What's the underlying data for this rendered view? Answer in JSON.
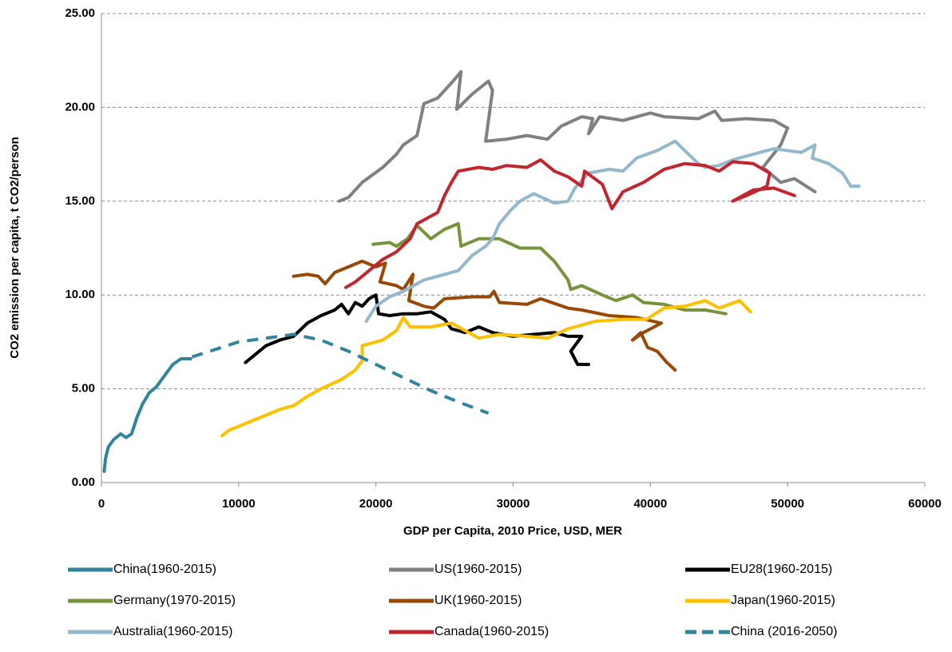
{
  "chart_data": {
    "type": "line",
    "x_label": "GDP per Capita, 2010 Price, USD, MER",
    "y_label": "CO2 emission per capita, t CO2/person",
    "xlim": [
      0,
      60000
    ],
    "xticks": [
      0,
      10000,
      20000,
      30000,
      40000,
      50000,
      60000
    ],
    "ylim": [
      0,
      25
    ],
    "yticks": [
      {
        "value": 0,
        "label": "0.00"
      },
      {
        "value": 5,
        "label": "5.00"
      },
      {
        "value": 10,
        "label": "10.00"
      },
      {
        "value": 15,
        "label": "15.00"
      },
      {
        "value": 20,
        "label": "20.00"
      },
      {
        "value": 25,
        "label": "25.00"
      }
    ],
    "grid": true,
    "legend": "bottom",
    "series": [
      {
        "name": "China(1960-2015)",
        "color": "#31849b",
        "line_style": "solid",
        "x": [
          200,
          300,
          500,
          900,
          1400,
          1800,
          2200,
          2600,
          3000,
          3500,
          4000,
          4600,
          5200,
          5800,
          6500
        ],
        "values": [
          0.6,
          1.3,
          1.9,
          2.3,
          2.6,
          2.4,
          2.6,
          3.5,
          4.2,
          4.8,
          5.1,
          5.7,
          6.3,
          6.6,
          6.6
        ]
      },
      {
        "name": "US(1960-2015)",
        "color": "#808080",
        "line_style": "solid",
        "x": [
          17300,
          18000,
          19000,
          20500,
          21500,
          22000,
          23000,
          23500,
          24500,
          25500,
          26200,
          25900,
          27000,
          28200,
          28500,
          28000,
          29500,
          31000,
          32500,
          33500,
          35000,
          35800,
          35500,
          36300,
          38000,
          40000,
          41000,
          43500,
          44700,
          45200,
          47000,
          49000,
          50000,
          49500,
          48200,
          49500,
          50500,
          52000
        ],
        "values": [
          15.0,
          15.2,
          16.0,
          16.8,
          17.5,
          18.0,
          18.5,
          20.2,
          20.5,
          21.3,
          21.9,
          19.9,
          20.7,
          21.4,
          20.9,
          18.2,
          18.3,
          18.5,
          18.3,
          19.0,
          19.5,
          19.4,
          18.6,
          19.5,
          19.3,
          19.7,
          19.5,
          19.4,
          19.8,
          19.3,
          19.4,
          19.3,
          18.9,
          18.0,
          16.8,
          16.0,
          16.2,
          15.5
        ]
      },
      {
        "name": "EU28(1960-2015)",
        "color": "#000000",
        "line_style": "solid",
        "x": [
          10500,
          11500,
          12000,
          13000,
          14000,
          15000,
          16000,
          17000,
          17500,
          18000,
          18500,
          19000,
          19500,
          20000,
          20200,
          21000,
          22000,
          23000,
          24000,
          25000,
          25500,
          26500,
          27500,
          28500,
          30000,
          31500,
          33000,
          34000,
          35000,
          34200,
          34700,
          35500
        ],
        "values": [
          6.4,
          7.0,
          7.3,
          7.6,
          7.8,
          8.5,
          8.9,
          9.2,
          9.5,
          9.0,
          9.6,
          9.4,
          9.8,
          10.0,
          9.0,
          8.9,
          9.0,
          9.0,
          9.1,
          8.7,
          8.2,
          8.0,
          8.3,
          8.0,
          7.8,
          7.9,
          8.0,
          7.8,
          7.8,
          7.0,
          6.3,
          6.3
        ]
      },
      {
        "name": "Germany(1970-2015)",
        "color": "#77933c",
        "line_style": "solid",
        "x": [
          19800,
          21000,
          21500,
          22300,
          23000,
          24000,
          25000,
          26000,
          26200,
          27500,
          29000,
          30500,
          32000,
          33000,
          34000,
          34200,
          35000,
          36500,
          37500,
          38700,
          39500,
          41000,
          42500,
          44000,
          45500
        ],
        "values": [
          12.7,
          12.8,
          12.6,
          13.0,
          13.7,
          13.0,
          13.5,
          13.8,
          12.6,
          13.0,
          13.0,
          12.5,
          12.5,
          11.8,
          10.8,
          10.3,
          10.5,
          10.0,
          9.7,
          10.0,
          9.6,
          9.5,
          9.2,
          9.2,
          9.0
        ]
      },
      {
        "name": "UK(1960-2015)",
        "color": "#984807",
        "line_style": "solid",
        "x": [
          14000,
          15000,
          15800,
          16300,
          17000,
          18000,
          19000,
          20000,
          20700,
          20300,
          21500,
          22000,
          22700,
          22400,
          23500,
          24200,
          25000,
          27000,
          28300,
          28600,
          29000,
          31000,
          32000,
          34000,
          35000,
          37000,
          39000,
          40800,
          39500,
          38700,
          39300,
          39800,
          40500,
          41200,
          41800
        ],
        "values": [
          11.0,
          11.1,
          11.0,
          10.6,
          11.2,
          11.5,
          11.8,
          11.5,
          11.7,
          10.7,
          10.5,
          10.3,
          11.1,
          9.7,
          9.4,
          9.3,
          9.8,
          9.9,
          9.9,
          10.2,
          9.6,
          9.5,
          9.8,
          9.3,
          9.2,
          8.9,
          8.8,
          8.5,
          8.0,
          7.6,
          8.0,
          7.2,
          7.0,
          6.4,
          6.0
        ]
      },
      {
        "name": "Japan(1960-2015)",
        "color": "#ffc000",
        "line_style": "solid",
        "x": [
          8800,
          9300,
          10000,
          11000,
          12000,
          13000,
          14000,
          15000,
          16000,
          17500,
          18500,
          19000,
          19000,
          20500,
          21500,
          22000,
          22500,
          24000,
          25500,
          26500,
          27500,
          29000,
          31000,
          32500,
          34000,
          36000,
          38000,
          39700,
          41000,
          42500,
          44000,
          45000,
          46500,
          47300
        ],
        "values": [
          2.5,
          2.8,
          3.0,
          3.3,
          3.6,
          3.9,
          4.1,
          4.6,
          5.0,
          5.5,
          6.0,
          6.5,
          7.3,
          7.6,
          8.1,
          8.8,
          8.3,
          8.3,
          8.5,
          8.1,
          7.7,
          7.9,
          7.8,
          7.7,
          8.2,
          8.6,
          8.7,
          8.7,
          9.3,
          9.4,
          9.7,
          9.3,
          9.7,
          9.1
        ]
      },
      {
        "name": "Australia(1960-2015)",
        "color": "#93b8cc",
        "line_style": "solid",
        "x": [
          19300,
          20000,
          21000,
          22000,
          23500,
          25000,
          26000,
          27000,
          28000,
          28500,
          29000,
          29800,
          30500,
          31500,
          33000,
          34000,
          34500,
          35500,
          37000,
          38000,
          39000,
          40500,
          41800,
          42500,
          43500,
          44000,
          45000,
          46000,
          47500,
          49000,
          51000,
          52000,
          51800,
          53000,
          54000,
          54600,
          55200
        ],
        "values": [
          8.6,
          9.4,
          9.9,
          10.2,
          10.8,
          11.1,
          11.3,
          12.1,
          12.6,
          13.0,
          13.8,
          14.5,
          15.0,
          15.4,
          14.9,
          15.0,
          15.7,
          16.5,
          16.7,
          16.6,
          17.3,
          17.7,
          18.2,
          17.7,
          17.0,
          16.8,
          16.9,
          17.2,
          17.5,
          17.8,
          17.6,
          18.0,
          17.3,
          17.0,
          16.5,
          15.8,
          15.8
        ]
      },
      {
        "name": "Canada(1960-2015)",
        "color": "#c0262d",
        "line_style": "solid",
        "x": [
          17800,
          18500,
          19500,
          20500,
          21500,
          22500,
          23000,
          24000,
          24500,
          25000,
          25500,
          26000,
          27500,
          28500,
          29500,
          31000,
          32000,
          33000,
          34000,
          35000,
          35200,
          36500,
          37200,
          38000,
          39500,
          41000,
          42500,
          44000,
          45000,
          46000,
          47500,
          48700,
          48500,
          47000,
          46000,
          47500,
          49000,
          50500
        ],
        "values": [
          10.4,
          10.7,
          11.3,
          11.9,
          12.3,
          13.0,
          13.8,
          14.2,
          14.4,
          15.3,
          16.0,
          16.6,
          16.8,
          16.7,
          16.9,
          16.8,
          17.2,
          16.6,
          16.3,
          15.8,
          16.6,
          15.9,
          14.6,
          15.5,
          16.0,
          16.7,
          17.0,
          16.9,
          16.6,
          17.1,
          17.0,
          16.5,
          15.8,
          15.3,
          15.0,
          15.6,
          15.7,
          15.3
        ]
      },
      {
        "name": "China (2016-2050)",
        "color": "#31849b",
        "line_style": "dashed",
        "x": [
          6600,
          10000,
          14000,
          16000,
          18000,
          20000,
          22000,
          24000,
          26000,
          28200
        ],
        "values": [
          6.7,
          7.5,
          7.9,
          7.6,
          7.0,
          6.3,
          5.6,
          4.9,
          4.3,
          3.7
        ]
      }
    ]
  }
}
